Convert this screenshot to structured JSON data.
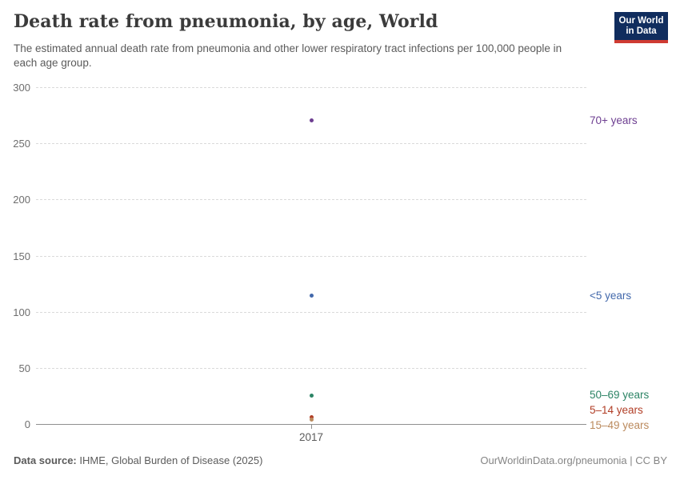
{
  "header": {
    "title": "Death rate from pneumonia, by age, World",
    "subtitle": "The estimated annual death rate from pneumonia and other lower respiratory tract infections per 100,000 people in each age group.",
    "logo": {
      "line1": "Our World",
      "line2": "in Data",
      "bg_color": "#102d5e",
      "stripe_color": "#cf3b32"
    }
  },
  "chart_data": {
    "type": "scatter",
    "title": "Death rate from pneumonia, by age, World",
    "x": [
      "2017"
    ],
    "series": [
      {
        "name": "70+ years",
        "values": [
          271
        ],
        "color": "#6d3e91"
      },
      {
        "name": "<5 years",
        "values": [
          115
        ],
        "color": "#4268ab"
      },
      {
        "name": "50–69 years",
        "values": [
          26
        ],
        "color": "#2c8465"
      },
      {
        "name": "5–14 years",
        "values": [
          7
        ],
        "color": "#b13e26"
      },
      {
        "name": "15–49 years",
        "values": [
          4.5
        ],
        "color": "#bb8a5d"
      }
    ],
    "xlabel": "",
    "ylabel": "",
    "ylim": [
      0,
      300
    ],
    "yticks": [
      0,
      50,
      100,
      150,
      200,
      250,
      300
    ],
    "grid": true,
    "legend_position": "right-edge-labels"
  },
  "footer": {
    "source_label": "Data source:",
    "source_text": " IHME, Global Burden of Disease (2025)",
    "credit": "OurWorldinData.org/pneumonia | CC BY"
  }
}
